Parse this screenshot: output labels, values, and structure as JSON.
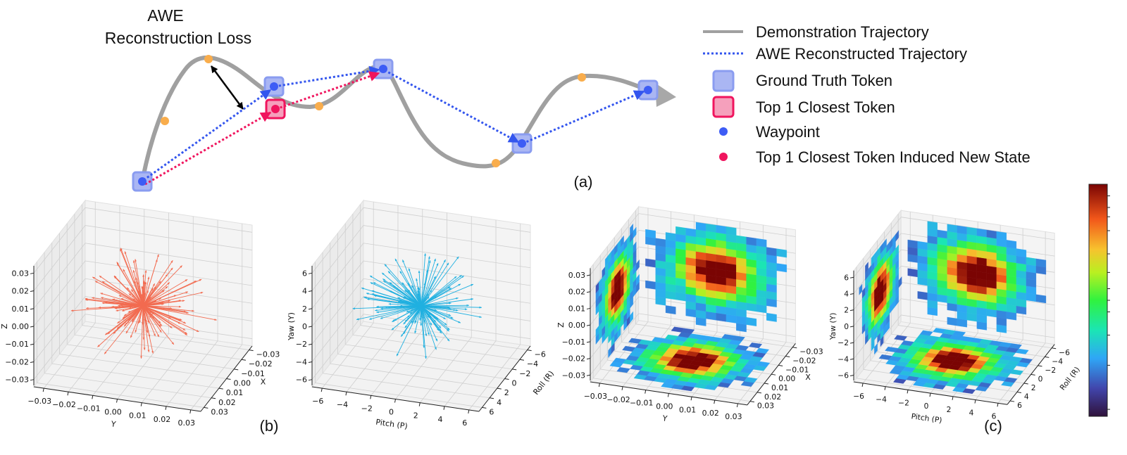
{
  "panel_a": {
    "title_line1": "AWE",
    "title_line2": "Reconstruction Loss",
    "label": "(a)",
    "legend": [
      {
        "label": "Demonstration Trajectory",
        "marker": "solid-line",
        "color": "#a0a0a0"
      },
      {
        "label": "AWE Reconstructed Trajectory",
        "marker": "dotted-line",
        "color": "#3355ee"
      },
      {
        "label": "Ground Truth Token",
        "marker": "square",
        "color": "#8a9cf0"
      },
      {
        "label": "Top 1 Closest Token",
        "marker": "square",
        "color": "#f08aa8"
      },
      {
        "label": "Waypoint",
        "marker": "dot",
        "color": "#3d5cf5"
      },
      {
        "label": "Top 1 Closest Token Induced New State",
        "marker": "dot",
        "color": "#f0155e"
      }
    ],
    "colors": {
      "trajectory": "#a0a0a0",
      "awe": "#3355ee",
      "closest": "#f0155e",
      "sample_point": "#f9ad4c",
      "loss_arrow": "#000000"
    }
  },
  "panel_b": {
    "label": "(b)",
    "plots": [
      {
        "type": "3d-quiver",
        "arrow_color": "#f26b50",
        "x_label": "X",
        "y_label": "Y",
        "z_label": "Z",
        "x_ticks": [
          "−0.03",
          "−0.02",
          "−0.01",
          "0.00",
          "0.01",
          "0.02",
          "0.03"
        ],
        "y_ticks": [
          "−0.03",
          "−0.02",
          "−0.01",
          "0.00",
          "0.01",
          "0.02",
          "0.03"
        ],
        "z_ticks": [
          "−0.03",
          "−0.02",
          "−0.01",
          "0.00",
          "0.01",
          "0.02",
          "0.03"
        ]
      },
      {
        "type": "3d-quiver",
        "arrow_color": "#20b0e0",
        "x_label": "Roll (R)",
        "y_label": "Pitch (P)",
        "z_label": "Yaw (Y)",
        "x_ticks": [
          "−6",
          "−4",
          "−2",
          "0",
          "2",
          "4",
          "6"
        ],
        "y_ticks": [
          "−6",
          "−4",
          "−2",
          "0",
          "2",
          "4",
          "6"
        ],
        "z_ticks": [
          "−6",
          "−4",
          "−2",
          "0",
          "2",
          "4",
          "6"
        ]
      }
    ]
  },
  "panel_c": {
    "label": "(c)",
    "colormap": "jet",
    "plots": [
      {
        "type": "3d-projected-heatmap",
        "x_label": "X",
        "y_label": "Y",
        "z_label": "Z",
        "x_ticks": [
          "−0.03",
          "−0.02",
          "−0.01",
          "0.00",
          "0.01",
          "0.02",
          "0.03"
        ],
        "y_ticks": [
          "−0.03",
          "−0.02",
          "−0.01",
          "0.00",
          "0.01",
          "0.02",
          "0.03"
        ],
        "z_ticks": [
          "−0.03",
          "−0.02",
          "−0.01",
          "0.00",
          "0.01",
          "0.02",
          "0.03"
        ]
      },
      {
        "type": "3d-projected-heatmap",
        "x_label": "Roll (R)",
        "y_label": "Pitch (P)",
        "z_label": "Yaw (Y)",
        "x_ticks": [
          "−6",
          "−4",
          "−2",
          "0",
          "2",
          "4",
          "6"
        ],
        "y_ticks": [
          "−6",
          "−4",
          "−2",
          "0",
          "2",
          "4",
          "6"
        ],
        "z_ticks": [
          "−6",
          "−4",
          "−2",
          "0",
          "2",
          "4",
          "6"
        ]
      }
    ]
  }
}
